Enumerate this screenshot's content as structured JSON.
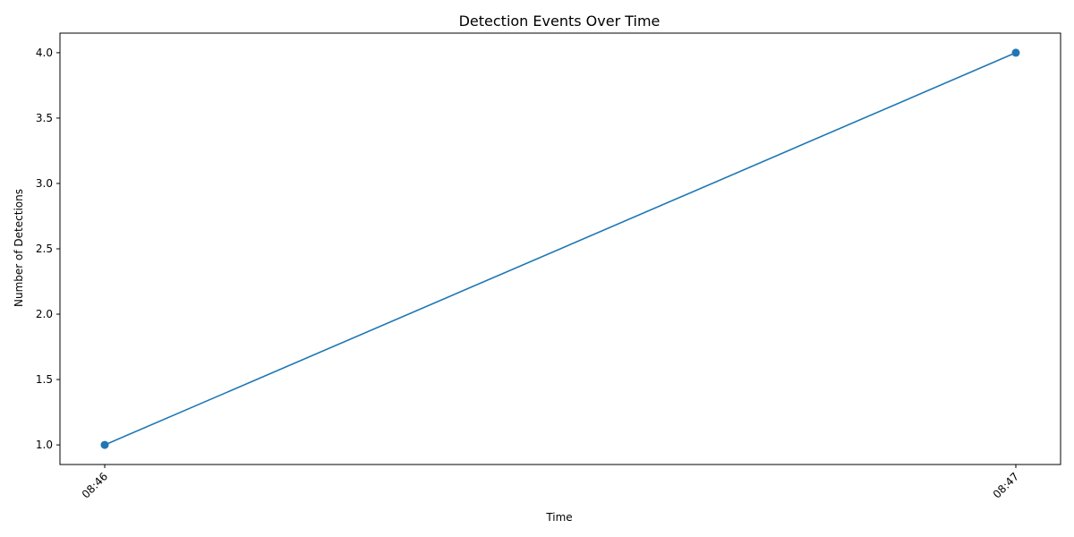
{
  "chart_data": {
    "type": "line",
    "title": "Detection Events Over Time",
    "xlabel": "Time",
    "ylabel": "Number of Detections",
    "x": [
      "08:46",
      "08:47"
    ],
    "series": [
      {
        "values": [
          1.0,
          4.0
        ],
        "color": "#1f77b4",
        "marker": "circle"
      }
    ],
    "ylim": [
      0.85,
      4.15
    ],
    "yticks": [
      "1.0",
      "1.5",
      "2.0",
      "2.5",
      "3.0",
      "3.5",
      "4.0"
    ],
    "xtick_rotation": "45 degrees",
    "grid": false,
    "legend": "none"
  }
}
